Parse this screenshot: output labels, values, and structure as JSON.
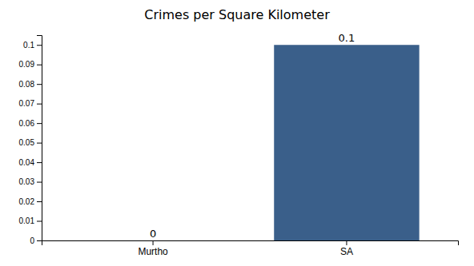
{
  "chart_data": {
    "type": "bar",
    "title": "Crimes per Square Kilometer",
    "categories": [
      "Murtho",
      "SA"
    ],
    "values": [
      0.0,
      0.1
    ],
    "color": "#3a5f8a",
    "ylim": [
      0,
      0.105
    ],
    "yticks": [
      0,
      0.01,
      0.02,
      0.03,
      0.04,
      0.05,
      0.06,
      0.07,
      0.08,
      0.09,
      0.1
    ],
    "grid": false,
    "data_labels": true
  }
}
